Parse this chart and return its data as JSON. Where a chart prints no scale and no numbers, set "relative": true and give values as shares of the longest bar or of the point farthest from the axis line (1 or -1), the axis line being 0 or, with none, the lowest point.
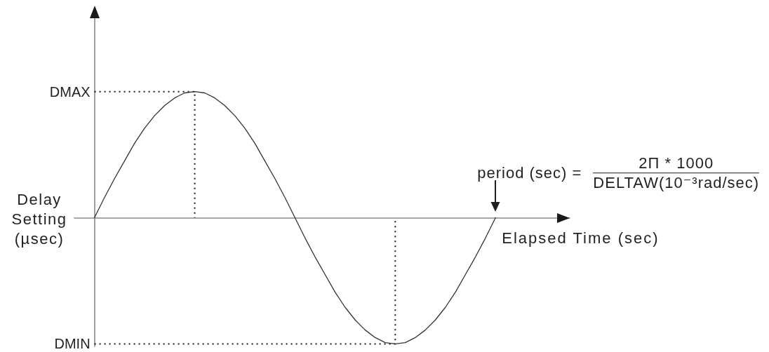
{
  "chart_data": {
    "type": "line",
    "relative": true,
    "categories": [
      null,
      null,
      null,
      null,
      null,
      null,
      null,
      null,
      null,
      null,
      null,
      null,
      null,
      null,
      null,
      null,
      null,
      null,
      null,
      null,
      null,
      null,
      null,
      null,
      null,
      null,
      null,
      null,
      null,
      null,
      null,
      null,
      null,
      null,
      null,
      null,
      null,
      null,
      null,
      null,
      null
    ],
    "values": [
      0,
      0.16,
      0.31,
      0.45,
      0.59,
      0.71,
      0.81,
      0.89,
      0.95,
      0.99,
      1,
      0.99,
      0.95,
      0.89,
      0.81,
      0.71,
      0.59,
      0.45,
      0.31,
      0.16,
      0,
      -0.16,
      -0.31,
      -0.45,
      -0.59,
      -0.71,
      -0.81,
      -0.89,
      -0.95,
      -0.99,
      -1,
      -0.99,
      -0.95,
      -0.89,
      -0.81,
      -0.71,
      -0.59,
      -0.45,
      -0.31,
      -0.16,
      0
    ],
    "color": "#333333",
    "marker": "none",
    "xlabel": "Elapsed Time (sec)",
    "ylabel": "Delay Setting (µsec)",
    "annotations": [
      "period (sec) =",
      "2Π * 1000",
      "DELTAW(10⁻³rad/sec)"
    ],
    "ref_lines": [
      {
        "axis": "y",
        "value": 1,
        "label": "DMAX",
        "line_style": "dotted",
        "color": "#1a1a1a"
      },
      {
        "axis": "y",
        "value": -1,
        "label": "DMIN",
        "line_style": "dotted",
        "color": "#1a1a1a"
      }
    ]
  }
}
